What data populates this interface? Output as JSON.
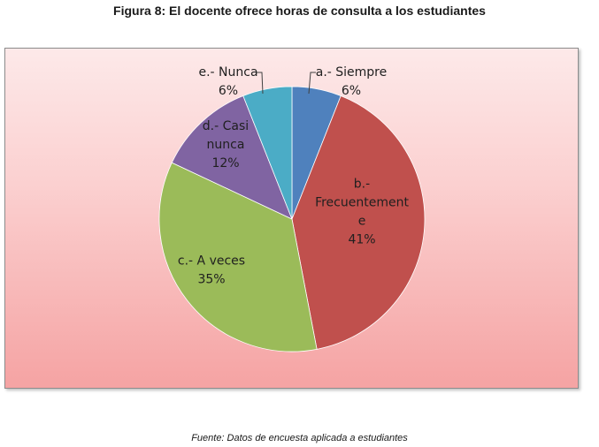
{
  "figure": {
    "title": "Figura 8: El docente ofrece horas de consulta a los estudiantes",
    "source": "Fuente: Datos de encuesta aplicada a estudiantes"
  },
  "chart_data": {
    "type": "pie",
    "title": "",
    "slices": [
      {
        "name": "a.- Siempre",
        "label_lines": [
          "a.- Siempre"
        ],
        "percent_label": "6%",
        "value": 6,
        "color": "#4f81bd"
      },
      {
        "name": "b.- Frecuentemente",
        "label_lines": [
          "b.-",
          "Frecuentement",
          "e"
        ],
        "percent_label": "41%",
        "value": 41,
        "color": "#c0504d"
      },
      {
        "name": "c.- A veces",
        "label_lines": [
          "c.- A veces"
        ],
        "percent_label": "35%",
        "value": 35,
        "color": "#9bbb59"
      },
      {
        "name": "d.- Casi nunca",
        "label_lines": [
          "d.- Casi",
          "nunca"
        ],
        "percent_label": "12%",
        "value": 12,
        "color": "#8064a2"
      },
      {
        "name": "e.- Nunca",
        "label_lines": [
          "e.- Nunca"
        ],
        "percent_label": "6%",
        "value": 6,
        "color": "#4bacc6"
      }
    ],
    "start_angle_deg": 0,
    "direction": "clockwise",
    "legend": "none",
    "data_labels": "category name and percentage"
  }
}
